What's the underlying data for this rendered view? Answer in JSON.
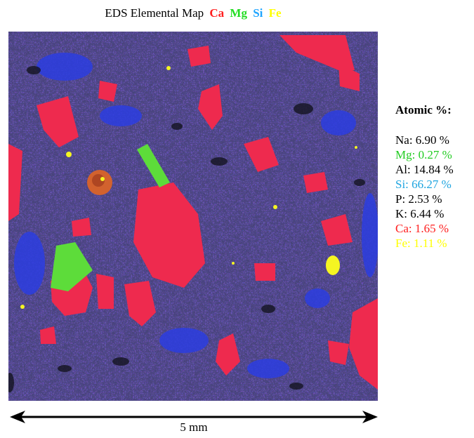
{
  "title": {
    "text": "EDS Elemental Map",
    "elements": [
      {
        "symbol": "Ca",
        "color": "#ff2020"
      },
      {
        "symbol": "Mg",
        "color": "#22dd22"
      },
      {
        "symbol": "Si",
        "color": "#1fa5ff"
      },
      {
        "symbol": "Fe",
        "color": "#ffff00"
      }
    ]
  },
  "composition": {
    "heading": "Atomic %:",
    "rows": [
      {
        "label": "Na: 6.90 %",
        "color": "#000000"
      },
      {
        "label": "Mg: 0.27 %",
        "color": "#22cc22"
      },
      {
        "label": "Al: 14.84 %",
        "color": "#000000"
      },
      {
        "label": "Si: 66.27 %",
        "color": "#1fa5e0"
      },
      {
        "label": "P: 2.53 %",
        "color": "#000000"
      },
      {
        "label": "K: 6.44 %",
        "color": "#000000"
      },
      {
        "label": "Ca: 1.65 %",
        "color": "#ff2020"
      },
      {
        "label": "Fe: 1.11 %",
        "color": "#ffff00"
      }
    ]
  },
  "scale": {
    "label": "5 mm"
  }
}
